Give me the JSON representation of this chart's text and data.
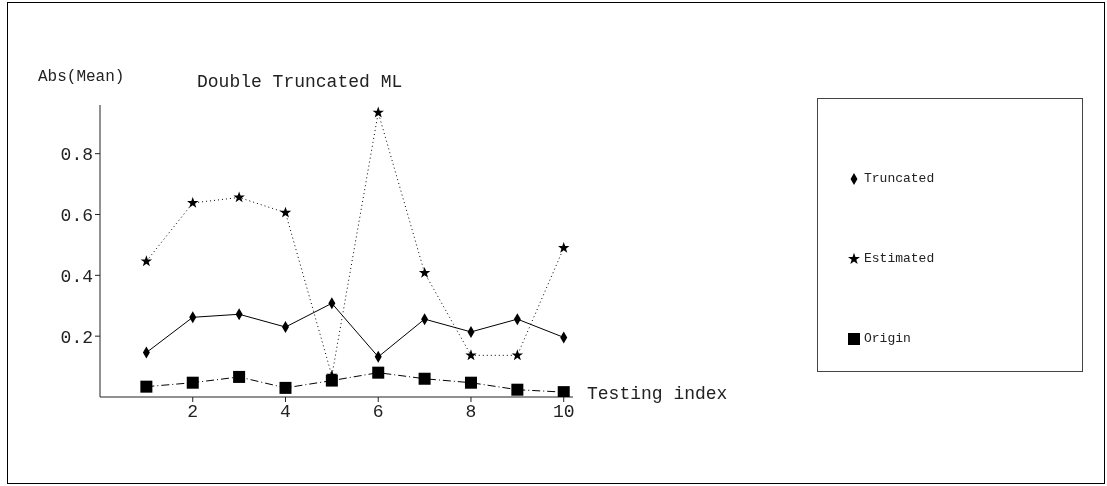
{
  "chart_data": {
    "type": "line",
    "title": "Double Truncated ML",
    "xlabel": "Testing index",
    "ylabel": "Abs(Mean)",
    "x": [
      1,
      2,
      3,
      4,
      5,
      6,
      7,
      8,
      9,
      10
    ],
    "series": [
      {
        "name": "Truncated",
        "color": "#000000",
        "marker": "diamond",
        "line_style": "solid",
        "values": [
          0.146,
          0.262,
          0.272,
          0.23,
          0.308,
          0.132,
          0.256,
          0.214,
          0.256,
          0.196
        ]
      },
      {
        "name": "Estimated",
        "color": "#000000",
        "marker": "star",
        "line_style": "dotted",
        "values": [
          0.446,
          0.638,
          0.656,
          0.606,
          0.07,
          0.935,
          0.408,
          0.137,
          0.137,
          0.49
        ]
      },
      {
        "name": "Origin",
        "color": "#000000",
        "marker": "square",
        "line_style": "dashdot",
        "values": [
          0.034,
          0.047,
          0.066,
          0.03,
          0.054,
          0.08,
          0.06,
          0.047,
          0.024,
          0.016
        ]
      }
    ],
    "xlim": [
      0,
      10.2
    ],
    "xticks": [
      2,
      4,
      6,
      8,
      10
    ],
    "ylim": [
      0,
      0.96
    ],
    "yticks": [
      0.2,
      0.4,
      0.6,
      0.8
    ],
    "grid": false,
    "legend": "right"
  }
}
